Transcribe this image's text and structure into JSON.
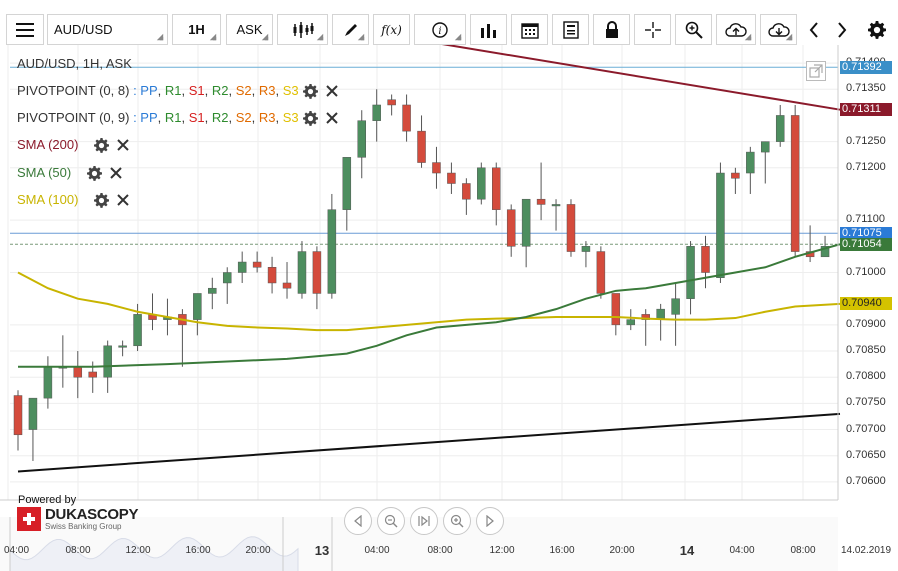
{
  "toolbar": {
    "menu_icon": "hamburger-icon",
    "instrument": "AUD/USD",
    "period": "1H",
    "side": "ASK",
    "icons": [
      "candle-type-icon",
      "draw-pen-icon",
      "function-icon",
      "info-icon",
      "volume-bars-icon",
      "calendar-icon",
      "news-icon",
      "lock-icon",
      "crosshair-icon",
      "zoom-icon",
      "cloud-upload-icon",
      "cloud-download-icon",
      "chevron-left-icon",
      "chevron-right-icon",
      "gear-icon"
    ],
    "fx_label": "f(x)"
  },
  "chart_title": "AUD/USD, 1H, ASK",
  "legends": [
    {
      "name": "PIVOTPOINT (0, 8)",
      "components": [
        {
          "label": "PP",
          "color": "#2b7bd6"
        },
        {
          "label": "R1",
          "color": "#2e8b2e"
        },
        {
          "label": "S1",
          "color": "#d62020"
        },
        {
          "label": "R2",
          "color": "#2e8b2e"
        },
        {
          "label": "S2",
          "color": "#e06a00"
        },
        {
          "label": "R3",
          "color": "#e06a00"
        },
        {
          "label": "S3",
          "color": "#e0c000"
        }
      ]
    },
    {
      "name": "PIVOTPOINT (0, 9)",
      "components": [
        {
          "label": "PP",
          "color": "#2b7bd6"
        },
        {
          "label": "R1",
          "color": "#2e8b2e"
        },
        {
          "label": "S1",
          "color": "#d62020"
        },
        {
          "label": "R2",
          "color": "#2e8b2e"
        },
        {
          "label": "S2",
          "color": "#e06a00"
        },
        {
          "label": "R3",
          "color": "#e06a00"
        },
        {
          "label": "S3",
          "color": "#e0c000"
        }
      ]
    },
    {
      "name": "SMA (200)",
      "color": "#8b1a2b"
    },
    {
      "name": "SMA (50)",
      "color": "#3a7a3a"
    },
    {
      "name": "SMA (100)",
      "color": "#c8b400"
    }
  ],
  "price_axis": {
    "ticks": [
      "0.71400",
      "0.71350",
      "0.71250",
      "0.71200",
      "0.71100",
      "0.71000",
      "0.70900",
      "0.70850",
      "0.70800",
      "0.70750",
      "0.70700",
      "0.70650",
      "0.70600"
    ],
    "tags": [
      {
        "value": "0.71392",
        "price": 0.71392,
        "color": "#3a8fc8"
      },
      {
        "value": "0.71311",
        "price": 0.71311,
        "color": "#8b1a2b"
      },
      {
        "value": "0.71075",
        "price": 0.71075,
        "color": "#2b7bd6"
      },
      {
        "value": "0.71054",
        "price": 0.71054,
        "color": "#3a7a3a"
      },
      {
        "value": "0.70940",
        "price": 0.7094,
        "color": "#d4c200",
        "text_color": "#222"
      }
    ]
  },
  "time_axis": [
    {
      "label": "04:00"
    },
    {
      "label": "08:00"
    },
    {
      "label": "12:00"
    },
    {
      "label": "16:00"
    },
    {
      "label": "20:00"
    },
    {
      "label": "13",
      "major": true
    },
    {
      "label": "04:00"
    },
    {
      "label": "08:00"
    },
    {
      "label": "12:00"
    },
    {
      "label": "16:00"
    },
    {
      "label": "20:00"
    },
    {
      "label": "14",
      "major": true
    },
    {
      "label": "04:00"
    },
    {
      "label": "08:00"
    },
    {
      "label": "14.02.2019"
    }
  ],
  "nav": [
    "scroll-left-icon",
    "zoom-out-icon",
    "fit-icon",
    "zoom-in-icon",
    "scroll-right-icon"
  ],
  "branding": {
    "powered_by": "Powered by",
    "name": "DUKASCOPY",
    "tagline": "Swiss Banking Group"
  },
  "chart_data": {
    "type": "candlestick",
    "title": "AUD/USD, 1H, ASK",
    "ylim": [
      0.70575,
      0.71425
    ],
    "candles": [
      [
        0.70765,
        0.70775,
        0.7066,
        0.7069
      ],
      [
        0.707,
        0.7076,
        0.7064,
        0.7076
      ],
      [
        0.7076,
        0.7084,
        0.7074,
        0.7082
      ],
      [
        0.7082,
        0.7088,
        0.7078,
        0.7082
      ],
      [
        0.7082,
        0.7085,
        0.7076,
        0.708
      ],
      [
        0.7081,
        0.7083,
        0.7077,
        0.708
      ],
      [
        0.708,
        0.7087,
        0.7077,
        0.7086
      ],
      [
        0.7086,
        0.7087,
        0.7084,
        0.7086
      ],
      [
        0.7086,
        0.7094,
        0.7085,
        0.7092
      ],
      [
        0.7092,
        0.7096,
        0.7089,
        0.7091
      ],
      [
        0.7091,
        0.7095,
        0.7088,
        0.70915
      ],
      [
        0.7092,
        0.7093,
        0.7082,
        0.709
      ],
      [
        0.7091,
        0.7096,
        0.7088,
        0.7096
      ],
      [
        0.7096,
        0.7099,
        0.7093,
        0.7097
      ],
      [
        0.7098,
        0.7101,
        0.7094,
        0.71
      ],
      [
        0.71,
        0.7104,
        0.7098,
        0.7102
      ],
      [
        0.7102,
        0.7104,
        0.71,
        0.7101
      ],
      [
        0.7101,
        0.7103,
        0.7096,
        0.7098
      ],
      [
        0.7098,
        0.7102,
        0.7095,
        0.7097
      ],
      [
        0.7096,
        0.7106,
        0.7095,
        0.7104
      ],
      [
        0.7104,
        0.7105,
        0.7093,
        0.7096
      ],
      [
        0.7096,
        0.7115,
        0.7095,
        0.7112
      ],
      [
        0.7112,
        0.7122,
        0.7108,
        0.7122
      ],
      [
        0.7122,
        0.7131,
        0.7118,
        0.7129
      ],
      [
        0.7129,
        0.7135,
        0.7125,
        0.7132
      ],
      [
        0.7133,
        0.7134,
        0.713,
        0.7132
      ],
      [
        0.7132,
        0.7134,
        0.7125,
        0.7127
      ],
      [
        0.7127,
        0.713,
        0.712,
        0.7121
      ],
      [
        0.7121,
        0.7124,
        0.7116,
        0.7119
      ],
      [
        0.7119,
        0.7121,
        0.7115,
        0.7117
      ],
      [
        0.7117,
        0.7118,
        0.7111,
        0.7114
      ],
      [
        0.7114,
        0.7121,
        0.7113,
        0.712
      ],
      [
        0.712,
        0.7121,
        0.7109,
        0.7112
      ],
      [
        0.7112,
        0.7113,
        0.7103,
        0.7105
      ],
      [
        0.7105,
        0.7114,
        0.7101,
        0.7114
      ],
      [
        0.7114,
        0.7121,
        0.711,
        0.7113
      ],
      [
        0.7113,
        0.7114,
        0.7108,
        0.7113
      ],
      [
        0.7113,
        0.7114,
        0.7103,
        0.7104
      ],
      [
        0.7104,
        0.7106,
        0.7101,
        0.7105
      ],
      [
        0.7104,
        0.7105,
        0.7095,
        0.7096
      ],
      [
        0.7096,
        0.7096,
        0.7088,
        0.709
      ],
      [
        0.709,
        0.7093,
        0.7089,
        0.7091
      ],
      [
        0.7092,
        0.7093,
        0.7086,
        0.7091
      ],
      [
        0.7091,
        0.7094,
        0.7087,
        0.7093
      ],
      [
        0.7092,
        0.7098,
        0.7086,
        0.7095
      ],
      [
        0.7095,
        0.7106,
        0.7092,
        0.7105
      ],
      [
        0.7105,
        0.7107,
        0.7097,
        0.71
      ],
      [
        0.7099,
        0.7121,
        0.7098,
        0.7119
      ],
      [
        0.7119,
        0.712,
        0.7115,
        0.7118
      ],
      [
        0.7119,
        0.7124,
        0.7115,
        0.7123
      ],
      [
        0.7123,
        0.7125,
        0.7117,
        0.7125
      ],
      [
        0.7125,
        0.7132,
        0.7124,
        0.713
      ],
      [
        0.713,
        0.7132,
        0.7103,
        0.7104
      ],
      [
        0.7104,
        0.7109,
        0.7102,
        0.7103
      ],
      [
        0.7103,
        0.7107,
        0.7103,
        0.7105
      ]
    ],
    "sma200": [
      [
        0,
        0.7157
      ],
      [
        55,
        0.71311
      ]
    ],
    "sma50": [
      [
        0,
        0.7082
      ],
      [
        5,
        0.7082
      ],
      [
        10,
        0.70825
      ],
      [
        14,
        0.7083
      ],
      [
        18,
        0.70835
      ],
      [
        20,
        0.7084
      ],
      [
        22,
        0.70845
      ],
      [
        24,
        0.7086
      ],
      [
        26,
        0.7088
      ],
      [
        28,
        0.70895
      ],
      [
        30,
        0.709
      ],
      [
        32,
        0.70905
      ],
      [
        34,
        0.70915
      ],
      [
        36,
        0.7093
      ],
      [
        38,
        0.7095
      ],
      [
        40,
        0.70965
      ],
      [
        42,
        0.7097
      ],
      [
        44,
        0.7098
      ],
      [
        46,
        0.7099
      ],
      [
        48,
        0.71
      ],
      [
        50,
        0.7101
      ],
      [
        52,
        0.7103
      ],
      [
        55,
        0.71054
      ]
    ],
    "sma100": [
      [
        0,
        0.71
      ],
      [
        2,
        0.7097
      ],
      [
        4,
        0.7095
      ],
      [
        6,
        0.7094
      ],
      [
        8,
        0.70925
      ],
      [
        10,
        0.70915
      ],
      [
        12,
        0.70905
      ],
      [
        14,
        0.70898
      ],
      [
        16,
        0.70895
      ],
      [
        18,
        0.70893
      ],
      [
        20,
        0.7089
      ],
      [
        22,
        0.7089
      ],
      [
        24,
        0.70895
      ],
      [
        26,
        0.709
      ],
      [
        28,
        0.70905
      ],
      [
        30,
        0.7091
      ],
      [
        32,
        0.70912
      ],
      [
        34,
        0.70913
      ],
      [
        36,
        0.70915
      ],
      [
        38,
        0.70915
      ],
      [
        40,
        0.70915
      ],
      [
        42,
        0.70912
      ],
      [
        44,
        0.7091
      ],
      [
        46,
        0.7091
      ],
      [
        48,
        0.70913
      ],
      [
        50,
        0.70925
      ],
      [
        52,
        0.70935
      ],
      [
        55,
        0.7094
      ]
    ],
    "trendline": [
      [
        0,
        0.7062
      ],
      [
        55,
        0.7073
      ]
    ],
    "hlines": [
      {
        "price": 0.71392,
        "color": "#6aaed6"
      },
      {
        "price": 0.71075,
        "color": "#6a9bd6"
      },
      {
        "price": 0.71054,
        "color": "#7a9a7a",
        "dashed": true
      }
    ],
    "up_color": "#4d8e5f",
    "down_color": "#d44b3c"
  }
}
